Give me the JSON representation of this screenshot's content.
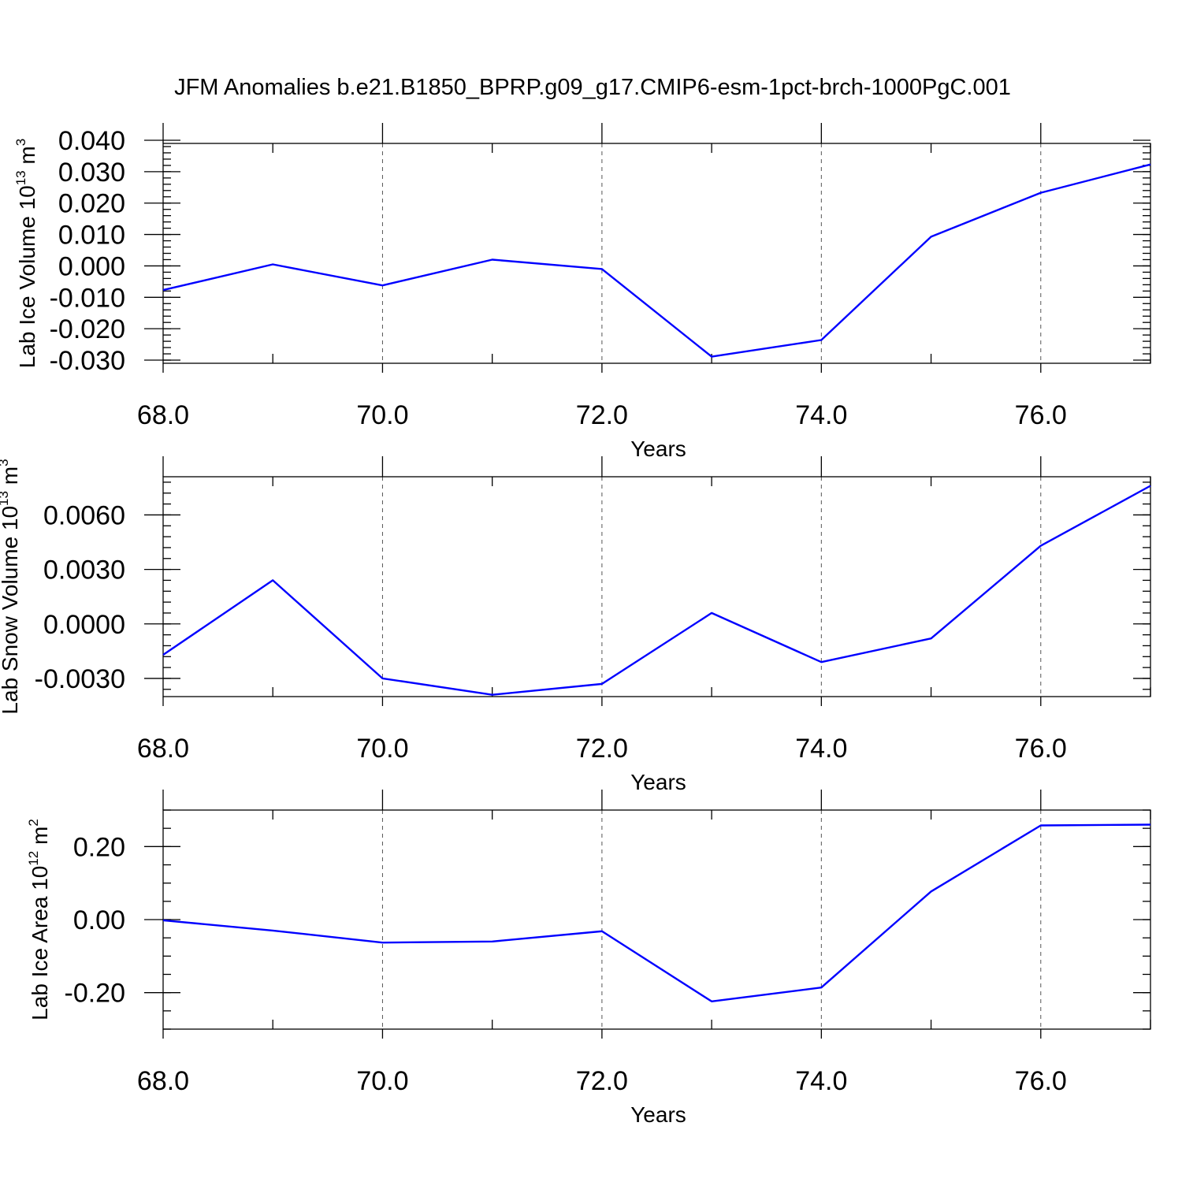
{
  "title": "JFM Anomalies b.e21.B1850_BPRP.g09_g17.CMIP6-esm-1pct-brch-1000PgC.001",
  "chart_data": [
    {
      "type": "line",
      "ylabel": "Lab Ice Volume 10",
      "ylabel_exp": "13",
      "ylabel_unit": " m",
      "ylabel_unit_exp": "3",
      "xlabel": "Years",
      "xlim": [
        68,
        77
      ],
      "ylim": [
        -0.031,
        0.039
      ],
      "grid_x": true,
      "x_ticks": [
        68,
        70,
        72,
        74,
        76
      ],
      "x_tick_labels": [
        "68.0",
        "70.0",
        "72.0",
        "74.0",
        "76.0"
      ],
      "y_ticks": [
        -0.03,
        -0.02,
        -0.01,
        0.0,
        0.01,
        0.02,
        0.03,
        0.04
      ],
      "y_tick_labels": [
        "-0.030",
        "-0.020",
        "-0.010",
        "0.000",
        "0.010",
        "0.020",
        "0.030",
        "0.040"
      ],
      "y_minor_step": 0.002,
      "x": [
        68,
        69,
        70,
        71,
        72,
        73,
        74,
        75,
        76,
        77
      ],
      "values": [
        -0.0077,
        0.0005,
        -0.0062,
        0.002,
        -0.001,
        -0.0289,
        -0.0236,
        0.0093,
        0.0233,
        0.0323
      ],
      "color": "#0000ff"
    },
    {
      "type": "line",
      "ylabel": "Lab Snow Volume 10",
      "ylabel_exp": "13",
      "ylabel_unit": " m",
      "ylabel_unit_exp": "3",
      "xlabel": "Years",
      "xlim": [
        68,
        77
      ],
      "ylim": [
        -0.004,
        0.0081
      ],
      "grid_x": true,
      "x_ticks": [
        68,
        70,
        72,
        74,
        76
      ],
      "x_tick_labels": [
        "68.0",
        "70.0",
        "72.0",
        "74.0",
        "76.0"
      ],
      "y_ticks": [
        -0.003,
        0.0,
        0.003,
        0.006
      ],
      "y_tick_labels": [
        "-0.0030",
        "0.0000",
        "0.0030",
        "0.0060"
      ],
      "y_minor_step": 0.0006,
      "x": [
        68,
        69,
        70,
        71,
        72,
        73,
        74,
        75,
        76,
        77
      ],
      "values": [
        -0.0017,
        0.0024,
        -0.003,
        -0.0039,
        -0.0033,
        0.0006,
        -0.0021,
        -0.0008,
        0.0043,
        0.0076
      ],
      "color": "#0000ff"
    },
    {
      "type": "line",
      "ylabel": "Lab Ice Area 10",
      "ylabel_exp": "12",
      "ylabel_unit": " m",
      "ylabel_unit_exp": "2",
      "xlabel": "Years",
      "xlim": [
        68,
        77
      ],
      "ylim": [
        -0.3,
        0.3
      ],
      "grid_x": true,
      "x_ticks": [
        68,
        70,
        72,
        74,
        76
      ],
      "x_tick_labels": [
        "68.0",
        "70.0",
        "72.0",
        "74.0",
        "76.0"
      ],
      "y_ticks": [
        -0.2,
        0.0,
        0.2
      ],
      "y_tick_labels": [
        "-0.20",
        "0.00",
        "0.20"
      ],
      "y_minor_step": 0.05,
      "x": [
        68,
        69,
        70,
        71,
        72,
        73,
        74,
        75,
        76,
        77
      ],
      "values": [
        -0.002,
        -0.03,
        -0.063,
        -0.06,
        -0.032,
        -0.224,
        -0.186,
        0.077,
        0.258,
        0.26
      ],
      "color": "#0000ff"
    }
  ]
}
